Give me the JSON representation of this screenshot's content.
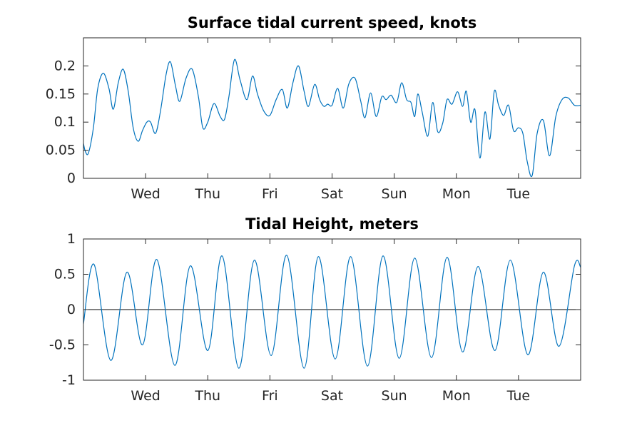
{
  "chart_data": [
    {
      "type": "line",
      "title": "Surface tidal current speed, knots",
      "xlabel": "",
      "ylabel": "",
      "x_tick_labels": [
        "Wed",
        "Thu",
        "Fri",
        "Sat",
        "Sun",
        "Mon",
        "Tue"
      ],
      "x_tick_days": [
        1,
        2,
        3,
        4,
        5,
        6,
        7
      ],
      "xlim_days": [
        0,
        8
      ],
      "ylim": [
        0,
        0.25
      ],
      "y_ticks": [
        0,
        0.05,
        0.1,
        0.15,
        0.2
      ],
      "y_tick_labels": [
        "0",
        "0.05",
        "0.1",
        "0.15",
        "0.2"
      ],
      "grid": false,
      "color": "#0072BD",
      "series": [
        {
          "x_days": [
            0.0,
            0.03,
            0.08,
            0.16,
            0.23,
            0.32,
            0.41,
            0.48,
            0.56,
            0.64,
            0.72,
            0.8,
            0.88,
            0.95,
            1.02,
            1.08,
            1.16,
            1.24,
            1.33,
            1.4,
            1.48,
            1.55,
            1.65,
            1.75,
            1.85,
            1.92,
            2.0,
            2.1,
            2.2,
            2.27,
            2.34,
            2.43,
            2.52,
            2.63,
            2.72,
            2.8,
            2.9,
            3.0,
            3.1,
            3.2,
            3.28,
            3.37,
            3.46,
            3.55,
            3.62,
            3.72,
            3.8,
            3.87,
            3.93,
            4.0,
            4.09,
            4.18,
            4.27,
            4.37,
            4.46,
            4.53,
            4.62,
            4.71,
            4.8,
            4.87,
            4.95,
            5.04,
            5.12,
            5.2,
            5.27,
            5.33,
            5.38,
            5.45,
            5.54,
            5.62,
            5.7,
            5.78,
            5.85,
            5.93,
            6.02,
            6.1,
            6.16,
            6.23,
            6.3,
            6.38,
            6.46,
            6.54,
            6.61,
            6.68,
            6.76,
            6.84,
            6.92,
            7.0,
            7.07,
            7.14,
            7.22,
            7.3,
            7.4,
            7.5,
            7.6,
            7.7,
            7.8,
            7.9,
            8.0
          ],
          "values": [
            0.062,
            0.048,
            0.045,
            0.09,
            0.16,
            0.187,
            0.16,
            0.123,
            0.17,
            0.194,
            0.155,
            0.09,
            0.066,
            0.085,
            0.1,
            0.1,
            0.08,
            0.12,
            0.185,
            0.207,
            0.165,
            0.137,
            0.178,
            0.194,
            0.145,
            0.09,
            0.1,
            0.133,
            0.11,
            0.105,
            0.145,
            0.211,
            0.175,
            0.14,
            0.182,
            0.15,
            0.12,
            0.112,
            0.14,
            0.158,
            0.125,
            0.17,
            0.2,
            0.155,
            0.128,
            0.167,
            0.14,
            0.128,
            0.132,
            0.13,
            0.16,
            0.125,
            0.168,
            0.178,
            0.138,
            0.108,
            0.152,
            0.11,
            0.145,
            0.14,
            0.148,
            0.135,
            0.17,
            0.14,
            0.135,
            0.11,
            0.15,
            0.118,
            0.075,
            0.135,
            0.083,
            0.098,
            0.14,
            0.132,
            0.154,
            0.128,
            0.155,
            0.1,
            0.122,
            0.036,
            0.118,
            0.07,
            0.155,
            0.13,
            0.112,
            0.13,
            0.085,
            0.09,
            0.08,
            0.03,
            0.005,
            0.08,
            0.103,
            0.04,
            0.11,
            0.14,
            0.143,
            0.13,
            0.13
          ]
        }
      ]
    },
    {
      "type": "line",
      "title": "Tidal Height, meters",
      "xlabel": "",
      "ylabel": "",
      "x_tick_labels": [
        "Wed",
        "Thu",
        "Fri",
        "Sat",
        "Sun",
        "Mon",
        "Tue"
      ],
      "x_tick_days": [
        1,
        2,
        3,
        4,
        5,
        6,
        7
      ],
      "xlim_days": [
        0,
        8
      ],
      "ylim": [
        -1,
        1
      ],
      "y_ticks": [
        -1,
        -0.5,
        0,
        0.5,
        1
      ],
      "y_tick_labels": [
        "-1",
        "-0.5",
        "0",
        "0.5",
        "1"
      ],
      "zero_line": true,
      "grid": false,
      "color": "#0072BD",
      "series": [
        {
          "x_days": [
            0.0,
            0.17,
            0.44,
            0.7,
            0.95,
            1.18,
            1.47,
            1.72,
            2.0,
            2.23,
            2.5,
            2.75,
            3.02,
            3.27,
            3.55,
            3.78,
            4.05,
            4.3,
            4.57,
            4.82,
            5.08,
            5.33,
            5.6,
            5.85,
            6.1,
            6.35,
            6.62,
            6.87,
            7.15,
            7.4,
            7.65,
            7.9,
            8.0
          ],
          "values": [
            -0.2,
            0.64,
            -0.72,
            0.53,
            -0.5,
            0.71,
            -0.79,
            0.62,
            -0.58,
            0.76,
            -0.83,
            0.7,
            -0.65,
            0.77,
            -0.83,
            0.75,
            -0.7,
            0.75,
            -0.8,
            0.76,
            -0.69,
            0.73,
            -0.68,
            0.74,
            -0.6,
            0.61,
            -0.58,
            0.7,
            -0.64,
            0.53,
            -0.52,
            0.62,
            0.6
          ]
        }
      ]
    }
  ]
}
